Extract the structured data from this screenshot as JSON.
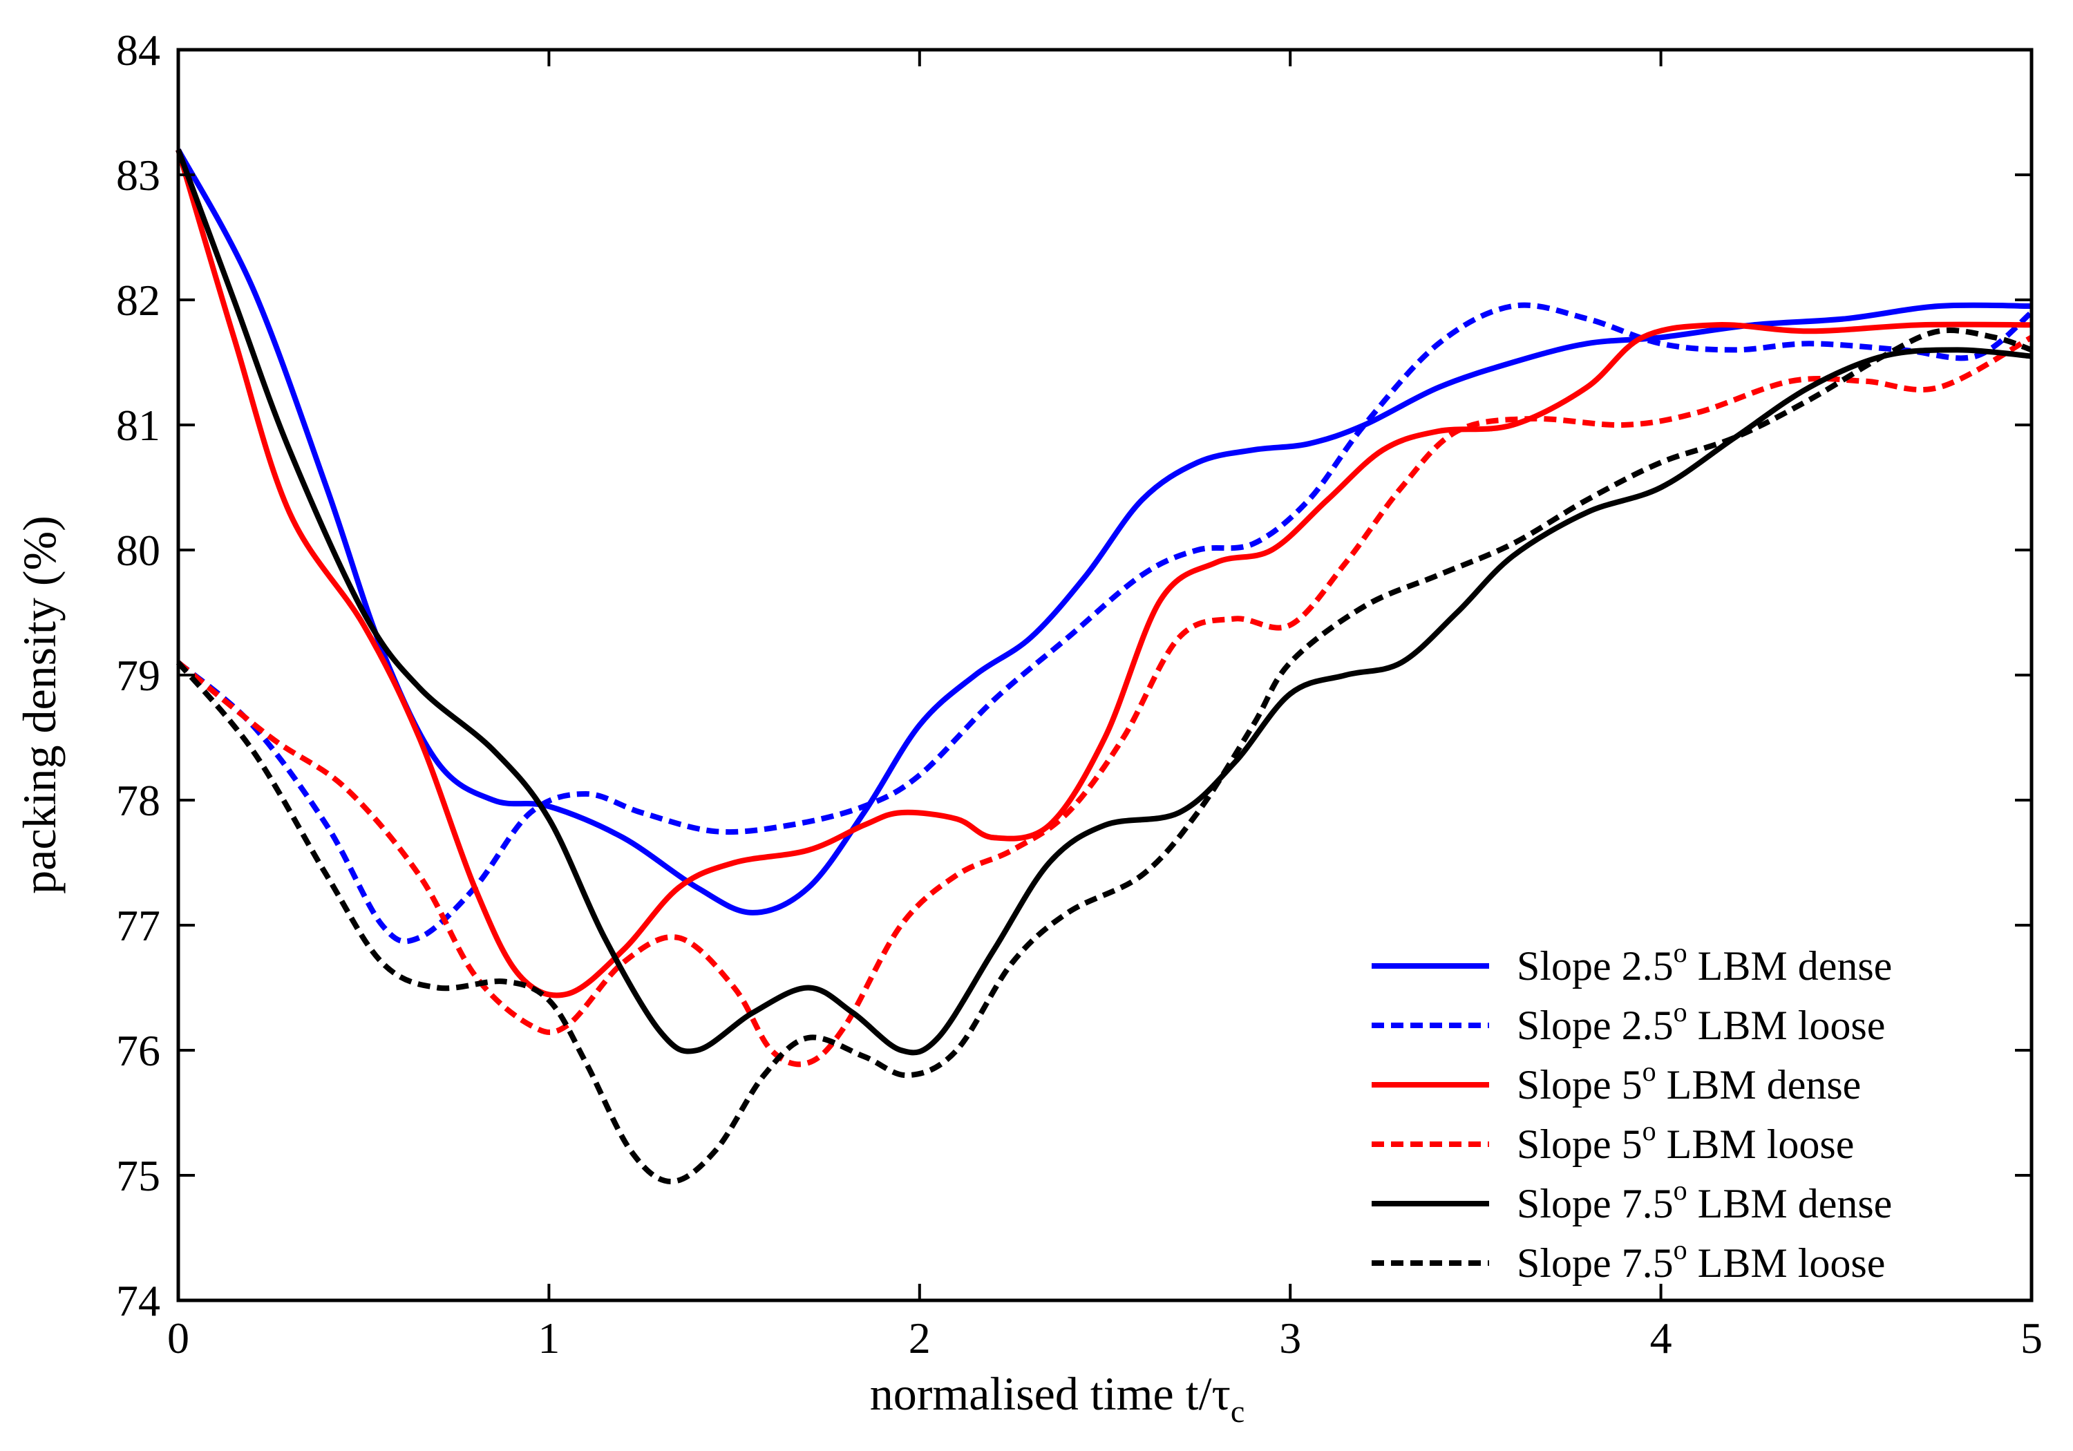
{
  "chart_data": {
    "type": "line",
    "xlabel_main": "normalised time t/τ",
    "xlabel_sub": "c",
    "ylabel": "packing density (%)",
    "xlim": [
      0,
      5
    ],
    "ylim": [
      74,
      84
    ],
    "x_ticks": [
      0,
      1,
      2,
      3,
      4,
      5
    ],
    "y_ticks": [
      74,
      75,
      76,
      77,
      78,
      79,
      80,
      81,
      82,
      83,
      84
    ],
    "grid": false,
    "legend_position": "bottom-right",
    "series": [
      {
        "name_pre": "Slope 2.5",
        "name_sup": "o",
        "name_post": " LBM dense",
        "color": "#0000ff",
        "dashed": false,
        "points": [
          [
            0,
            83.2
          ],
          [
            0.2,
            82.1
          ],
          [
            0.4,
            80.5
          ],
          [
            0.55,
            79.2
          ],
          [
            0.7,
            78.3
          ],
          [
            0.85,
            78.0
          ],
          [
            1.0,
            77.95
          ],
          [
            1.2,
            77.7
          ],
          [
            1.4,
            77.3
          ],
          [
            1.55,
            77.1
          ],
          [
            1.7,
            77.3
          ],
          [
            1.85,
            77.9
          ],
          [
            2.0,
            78.6
          ],
          [
            2.15,
            79.0
          ],
          [
            2.3,
            79.3
          ],
          [
            2.45,
            79.8
          ],
          [
            2.6,
            80.4
          ],
          [
            2.75,
            80.7
          ],
          [
            2.9,
            80.8
          ],
          [
            3.05,
            80.85
          ],
          [
            3.2,
            81.0
          ],
          [
            3.4,
            81.3
          ],
          [
            3.6,
            81.5
          ],
          [
            3.8,
            81.65
          ],
          [
            4.0,
            81.7
          ],
          [
            4.25,
            81.8
          ],
          [
            4.5,
            81.85
          ],
          [
            4.75,
            81.95
          ],
          [
            5.0,
            81.95
          ]
        ]
      },
      {
        "name_pre": "Slope 2.5",
        "name_sup": "o",
        "name_post": " LBM loose",
        "color": "#0000ff",
        "dashed": true,
        "points": [
          [
            0,
            79.1
          ],
          [
            0.2,
            78.6
          ],
          [
            0.4,
            77.8
          ],
          [
            0.55,
            77.0
          ],
          [
            0.65,
            76.9
          ],
          [
            0.8,
            77.3
          ],
          [
            0.95,
            77.9
          ],
          [
            1.1,
            78.05
          ],
          [
            1.25,
            77.9
          ],
          [
            1.45,
            77.75
          ],
          [
            1.65,
            77.8
          ],
          [
            1.85,
            77.95
          ],
          [
            2.0,
            78.2
          ],
          [
            2.2,
            78.8
          ],
          [
            2.4,
            79.3
          ],
          [
            2.6,
            79.8
          ],
          [
            2.75,
            80.0
          ],
          [
            2.9,
            80.05
          ],
          [
            3.05,
            80.4
          ],
          [
            3.2,
            81.0
          ],
          [
            3.4,
            81.65
          ],
          [
            3.6,
            81.95
          ],
          [
            3.8,
            81.85
          ],
          [
            4.0,
            81.65
          ],
          [
            4.2,
            81.6
          ],
          [
            4.4,
            81.65
          ],
          [
            4.65,
            81.6
          ],
          [
            4.85,
            81.55
          ],
          [
            5.0,
            81.9
          ]
        ]
      },
      {
        "name_pre": "Slope 5",
        "name_sup": "o",
        "name_post": " LBM dense",
        "color": "#ff0000",
        "dashed": false,
        "points": [
          [
            0,
            83.2
          ],
          [
            0.15,
            81.7
          ],
          [
            0.3,
            80.3
          ],
          [
            0.5,
            79.4
          ],
          [
            0.65,
            78.5
          ],
          [
            0.8,
            77.3
          ],
          [
            0.92,
            76.6
          ],
          [
            1.05,
            76.45
          ],
          [
            1.2,
            76.8
          ],
          [
            1.35,
            77.3
          ],
          [
            1.5,
            77.5
          ],
          [
            1.7,
            77.6
          ],
          [
            1.85,
            77.8
          ],
          [
            1.95,
            77.9
          ],
          [
            2.1,
            77.85
          ],
          [
            2.2,
            77.7
          ],
          [
            2.35,
            77.8
          ],
          [
            2.5,
            78.5
          ],
          [
            2.65,
            79.6
          ],
          [
            2.8,
            79.9
          ],
          [
            2.95,
            80.0
          ],
          [
            3.1,
            80.4
          ],
          [
            3.25,
            80.8
          ],
          [
            3.4,
            80.95
          ],
          [
            3.6,
            81.0
          ],
          [
            3.8,
            81.3
          ],
          [
            3.95,
            81.7
          ],
          [
            4.15,
            81.8
          ],
          [
            4.4,
            81.75
          ],
          [
            4.7,
            81.8
          ],
          [
            5.0,
            81.8
          ]
        ]
      },
      {
        "name_pre": "Slope 5",
        "name_sup": "o",
        "name_post": " LBM loose",
        "color": "#ff0000",
        "dashed": true,
        "points": [
          [
            0,
            79.1
          ],
          [
            0.25,
            78.5
          ],
          [
            0.45,
            78.1
          ],
          [
            0.65,
            77.4
          ],
          [
            0.8,
            76.6
          ],
          [
            0.95,
            76.2
          ],
          [
            1.05,
            76.2
          ],
          [
            1.2,
            76.7
          ],
          [
            1.35,
            76.9
          ],
          [
            1.5,
            76.5
          ],
          [
            1.6,
            76.0
          ],
          [
            1.7,
            75.9
          ],
          [
            1.8,
            76.2
          ],
          [
            1.95,
            77.0
          ],
          [
            2.1,
            77.4
          ],
          [
            2.25,
            77.6
          ],
          [
            2.4,
            77.9
          ],
          [
            2.55,
            78.5
          ],
          [
            2.7,
            79.3
          ],
          [
            2.85,
            79.45
          ],
          [
            3.0,
            79.4
          ],
          [
            3.15,
            79.9
          ],
          [
            3.3,
            80.5
          ],
          [
            3.45,
            80.95
          ],
          [
            3.65,
            81.05
          ],
          [
            3.9,
            81.0
          ],
          [
            4.1,
            81.1
          ],
          [
            4.35,
            81.35
          ],
          [
            4.55,
            81.35
          ],
          [
            4.75,
            81.3
          ],
          [
            5.0,
            81.7
          ]
        ]
      },
      {
        "name_pre": "Slope 7.5",
        "name_sup": "o",
        "name_post": " LBM dense",
        "color": "#000000",
        "dashed": false,
        "points": [
          [
            0,
            83.2
          ],
          [
            0.15,
            82.0
          ],
          [
            0.3,
            80.8
          ],
          [
            0.5,
            79.5
          ],
          [
            0.65,
            78.9
          ],
          [
            0.85,
            78.4
          ],
          [
            1.0,
            77.85
          ],
          [
            1.15,
            76.9
          ],
          [
            1.3,
            76.15
          ],
          [
            1.4,
            76.0
          ],
          [
            1.55,
            76.3
          ],
          [
            1.7,
            76.5
          ],
          [
            1.82,
            76.3
          ],
          [
            1.95,
            76.0
          ],
          [
            2.05,
            76.1
          ],
          [
            2.2,
            76.8
          ],
          [
            2.35,
            77.5
          ],
          [
            2.5,
            77.8
          ],
          [
            2.7,
            77.9
          ],
          [
            2.85,
            78.3
          ],
          [
            3.0,
            78.85
          ],
          [
            3.15,
            79.0
          ],
          [
            3.3,
            79.1
          ],
          [
            3.45,
            79.5
          ],
          [
            3.6,
            79.95
          ],
          [
            3.8,
            80.3
          ],
          [
            4.0,
            80.5
          ],
          [
            4.2,
            80.9
          ],
          [
            4.4,
            81.3
          ],
          [
            4.6,
            81.55
          ],
          [
            4.8,
            81.6
          ],
          [
            5.0,
            81.55
          ]
        ]
      },
      {
        "name_pre": "Slope 7.5",
        "name_sup": "o",
        "name_post": " LBM loose",
        "color": "#000000",
        "dashed": true,
        "points": [
          [
            0,
            79.1
          ],
          [
            0.2,
            78.4
          ],
          [
            0.4,
            77.4
          ],
          [
            0.55,
            76.7
          ],
          [
            0.7,
            76.5
          ],
          [
            0.88,
            76.55
          ],
          [
            1.0,
            76.4
          ],
          [
            1.1,
            75.9
          ],
          [
            1.22,
            75.2
          ],
          [
            1.33,
            74.95
          ],
          [
            1.45,
            75.2
          ],
          [
            1.58,
            75.8
          ],
          [
            1.7,
            76.1
          ],
          [
            1.85,
            75.95
          ],
          [
            1.97,
            75.8
          ],
          [
            2.1,
            76.0
          ],
          [
            2.25,
            76.7
          ],
          [
            2.4,
            77.1
          ],
          [
            2.6,
            77.4
          ],
          [
            2.75,
            77.9
          ],
          [
            2.9,
            78.6
          ],
          [
            3.0,
            79.1
          ],
          [
            3.2,
            79.55
          ],
          [
            3.4,
            79.8
          ],
          [
            3.6,
            80.05
          ],
          [
            3.8,
            80.4
          ],
          [
            4.0,
            80.7
          ],
          [
            4.2,
            80.9
          ],
          [
            4.4,
            81.2
          ],
          [
            4.6,
            81.55
          ],
          [
            4.75,
            81.75
          ],
          [
            4.9,
            81.7
          ],
          [
            5.0,
            81.6
          ]
        ]
      }
    ]
  }
}
